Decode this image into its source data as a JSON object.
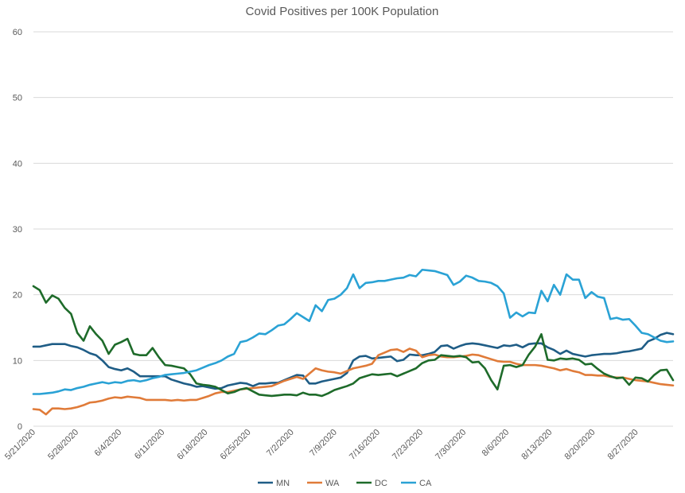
{
  "chart_data": {
    "type": "line",
    "title": "Covid Positives per 100K Population",
    "xlabel": "",
    "ylabel": "",
    "ylim": [
      0,
      60
    ],
    "yticks": [
      0,
      10,
      20,
      30,
      40,
      50,
      60
    ],
    "grid": true,
    "legend_position": "bottom",
    "x_tick_labels": [
      "5/21/2020",
      "5/28/2020",
      "6/4/2020",
      "6/11/2020",
      "6/18/2020",
      "6/25/2020",
      "7/2/2020",
      "7/9/2020",
      "7/16/2020",
      "7/23/2020",
      "7/30/2020",
      "8/6/2020",
      "8/13/2020",
      "8/20/2020",
      "8/27/2020"
    ],
    "x_start": "5/21/2020",
    "x_end": "9/2/2020",
    "series": [
      {
        "name": "MN",
        "color": "#1f5d86",
        "values": [
          12.1,
          12.1,
          12.3,
          12.5,
          12.5,
          12.5,
          12.2,
          12.0,
          11.6,
          11.1,
          10.8,
          10.0,
          9.0,
          8.7,
          8.5,
          8.8,
          8.3,
          7.6,
          7.6,
          7.6,
          7.6,
          7.6,
          7.1,
          6.8,
          6.5,
          6.3,
          6.0,
          6.1,
          5.9,
          5.7,
          5.8,
          6.2,
          6.4,
          6.6,
          6.5,
          6.1,
          6.5,
          6.5,
          6.6,
          6.6,
          7.0,
          7.4,
          7.8,
          7.7,
          6.5,
          6.5,
          6.8,
          7.0,
          7.2,
          7.4,
          8.1,
          10.0,
          10.6,
          10.7,
          10.3,
          10.4,
          10.5,
          10.6,
          9.9,
          10.1,
          10.9,
          10.8,
          10.8,
          11.0,
          11.3,
          12.2,
          12.3,
          11.8,
          12.2,
          12.5,
          12.6,
          12.5,
          12.3,
          12.1,
          11.9,
          12.3,
          12.2,
          12.4,
          12.0,
          12.5,
          12.6,
          12.6,
          12.0,
          11.6,
          11.0,
          11.5,
          11.0,
          10.8,
          10.6,
          10.8,
          10.9,
          11.0,
          11.0,
          11.1,
          11.3,
          11.4,
          11.6,
          11.8,
          12.9,
          13.3,
          13.9,
          14.2,
          14.0
        ]
      },
      {
        "name": "WA",
        "color": "#e07b39",
        "values": [
          2.6,
          2.5,
          1.8,
          2.7,
          2.7,
          2.6,
          2.7,
          2.9,
          3.2,
          3.6,
          3.7,
          3.9,
          4.2,
          4.4,
          4.3,
          4.5,
          4.4,
          4.3,
          4.0,
          4.0,
          4.0,
          4.0,
          3.9,
          4.0,
          3.9,
          4.0,
          4.0,
          4.3,
          4.6,
          5.0,
          5.2,
          5.2,
          5.4,
          5.6,
          5.7,
          5.8,
          5.9,
          6.0,
          6.1,
          6.5,
          6.9,
          7.2,
          7.5,
          7.2,
          8.0,
          8.8,
          8.5,
          8.3,
          8.2,
          8.0,
          8.4,
          8.8,
          9.0,
          9.2,
          9.5,
          10.8,
          11.2,
          11.6,
          11.7,
          11.3,
          11.8,
          11.5,
          10.5,
          10.8,
          10.9,
          10.6,
          10.5,
          10.5,
          10.6,
          10.7,
          10.9,
          10.8,
          10.5,
          10.2,
          9.9,
          9.8,
          9.8,
          9.5,
          9.3,
          9.3,
          9.3,
          9.2,
          9.0,
          8.8,
          8.5,
          8.7,
          8.4,
          8.2,
          7.8,
          7.8,
          7.7,
          7.7,
          7.5,
          7.4,
          7.4,
          7.2,
          7.0,
          6.9,
          6.8,
          6.6,
          6.4,
          6.3,
          6.2
        ]
      },
      {
        "name": "DC",
        "color": "#1e6b2a",
        "values": [
          21.3,
          20.7,
          18.8,
          19.9,
          19.4,
          18.0,
          17.1,
          14.2,
          13.0,
          15.2,
          14.0,
          13.0,
          11.0,
          12.4,
          12.8,
          13.3,
          11.0,
          10.8,
          10.8,
          11.9,
          10.5,
          9.3,
          9.2,
          9.0,
          8.8,
          7.9,
          6.5,
          6.3,
          6.2,
          6.0,
          5.5,
          5.0,
          5.2,
          5.6,
          5.8,
          5.3,
          4.8,
          4.7,
          4.6,
          4.7,
          4.8,
          4.8,
          4.7,
          5.1,
          4.8,
          4.8,
          4.6,
          5.0,
          5.5,
          5.8,
          6.1,
          6.5,
          7.3,
          7.6,
          7.9,
          7.8,
          7.9,
          8.0,
          7.6,
          8.0,
          8.4,
          8.8,
          9.6,
          10.0,
          10.1,
          10.8,
          10.7,
          10.6,
          10.7,
          10.5,
          9.7,
          9.8,
          8.8,
          7.0,
          5.6,
          9.2,
          9.3,
          9.0,
          9.3,
          10.9,
          12.1,
          14.0,
          10.1,
          10.0,
          10.3,
          10.2,
          10.3,
          10.1,
          9.4,
          9.5,
          8.7,
          8.0,
          7.6,
          7.3,
          7.4,
          6.3,
          7.4,
          7.3,
          6.8,
          7.8,
          8.5,
          8.6,
          7.0
        ]
      },
      {
        "name": "CA",
        "color": "#2aa2d5",
        "values": [
          4.9,
          4.9,
          5.0,
          5.1,
          5.3,
          5.6,
          5.5,
          5.8,
          6.0,
          6.3,
          6.5,
          6.7,
          6.5,
          6.7,
          6.6,
          6.9,
          7.0,
          6.8,
          7.0,
          7.3,
          7.5,
          7.8,
          7.9,
          8.0,
          8.1,
          8.3,
          8.5,
          8.9,
          9.3,
          9.6,
          10.0,
          10.6,
          11.0,
          12.8,
          13.0,
          13.5,
          14.1,
          14.0,
          14.6,
          15.3,
          15.5,
          16.3,
          17.2,
          16.6,
          16.0,
          18.4,
          17.5,
          19.2,
          19.4,
          20.0,
          21.0,
          23.1,
          21.0,
          21.8,
          21.9,
          22.1,
          22.1,
          22.3,
          22.5,
          22.6,
          23.0,
          22.8,
          23.8,
          23.7,
          23.6,
          23.3,
          23.0,
          21.5,
          22.0,
          22.9,
          22.6,
          22.1,
          22.0,
          21.8,
          21.3,
          20.2,
          16.5,
          17.3,
          16.7,
          17.3,
          17.2,
          20.6,
          19.0,
          21.5,
          20.0,
          23.1,
          22.3,
          22.3,
          19.5,
          20.4,
          19.7,
          19.5,
          16.3,
          16.5,
          16.2,
          16.3,
          15.3,
          14.2,
          14.0,
          13.5,
          13.0,
          12.8,
          12.9
        ]
      }
    ]
  }
}
